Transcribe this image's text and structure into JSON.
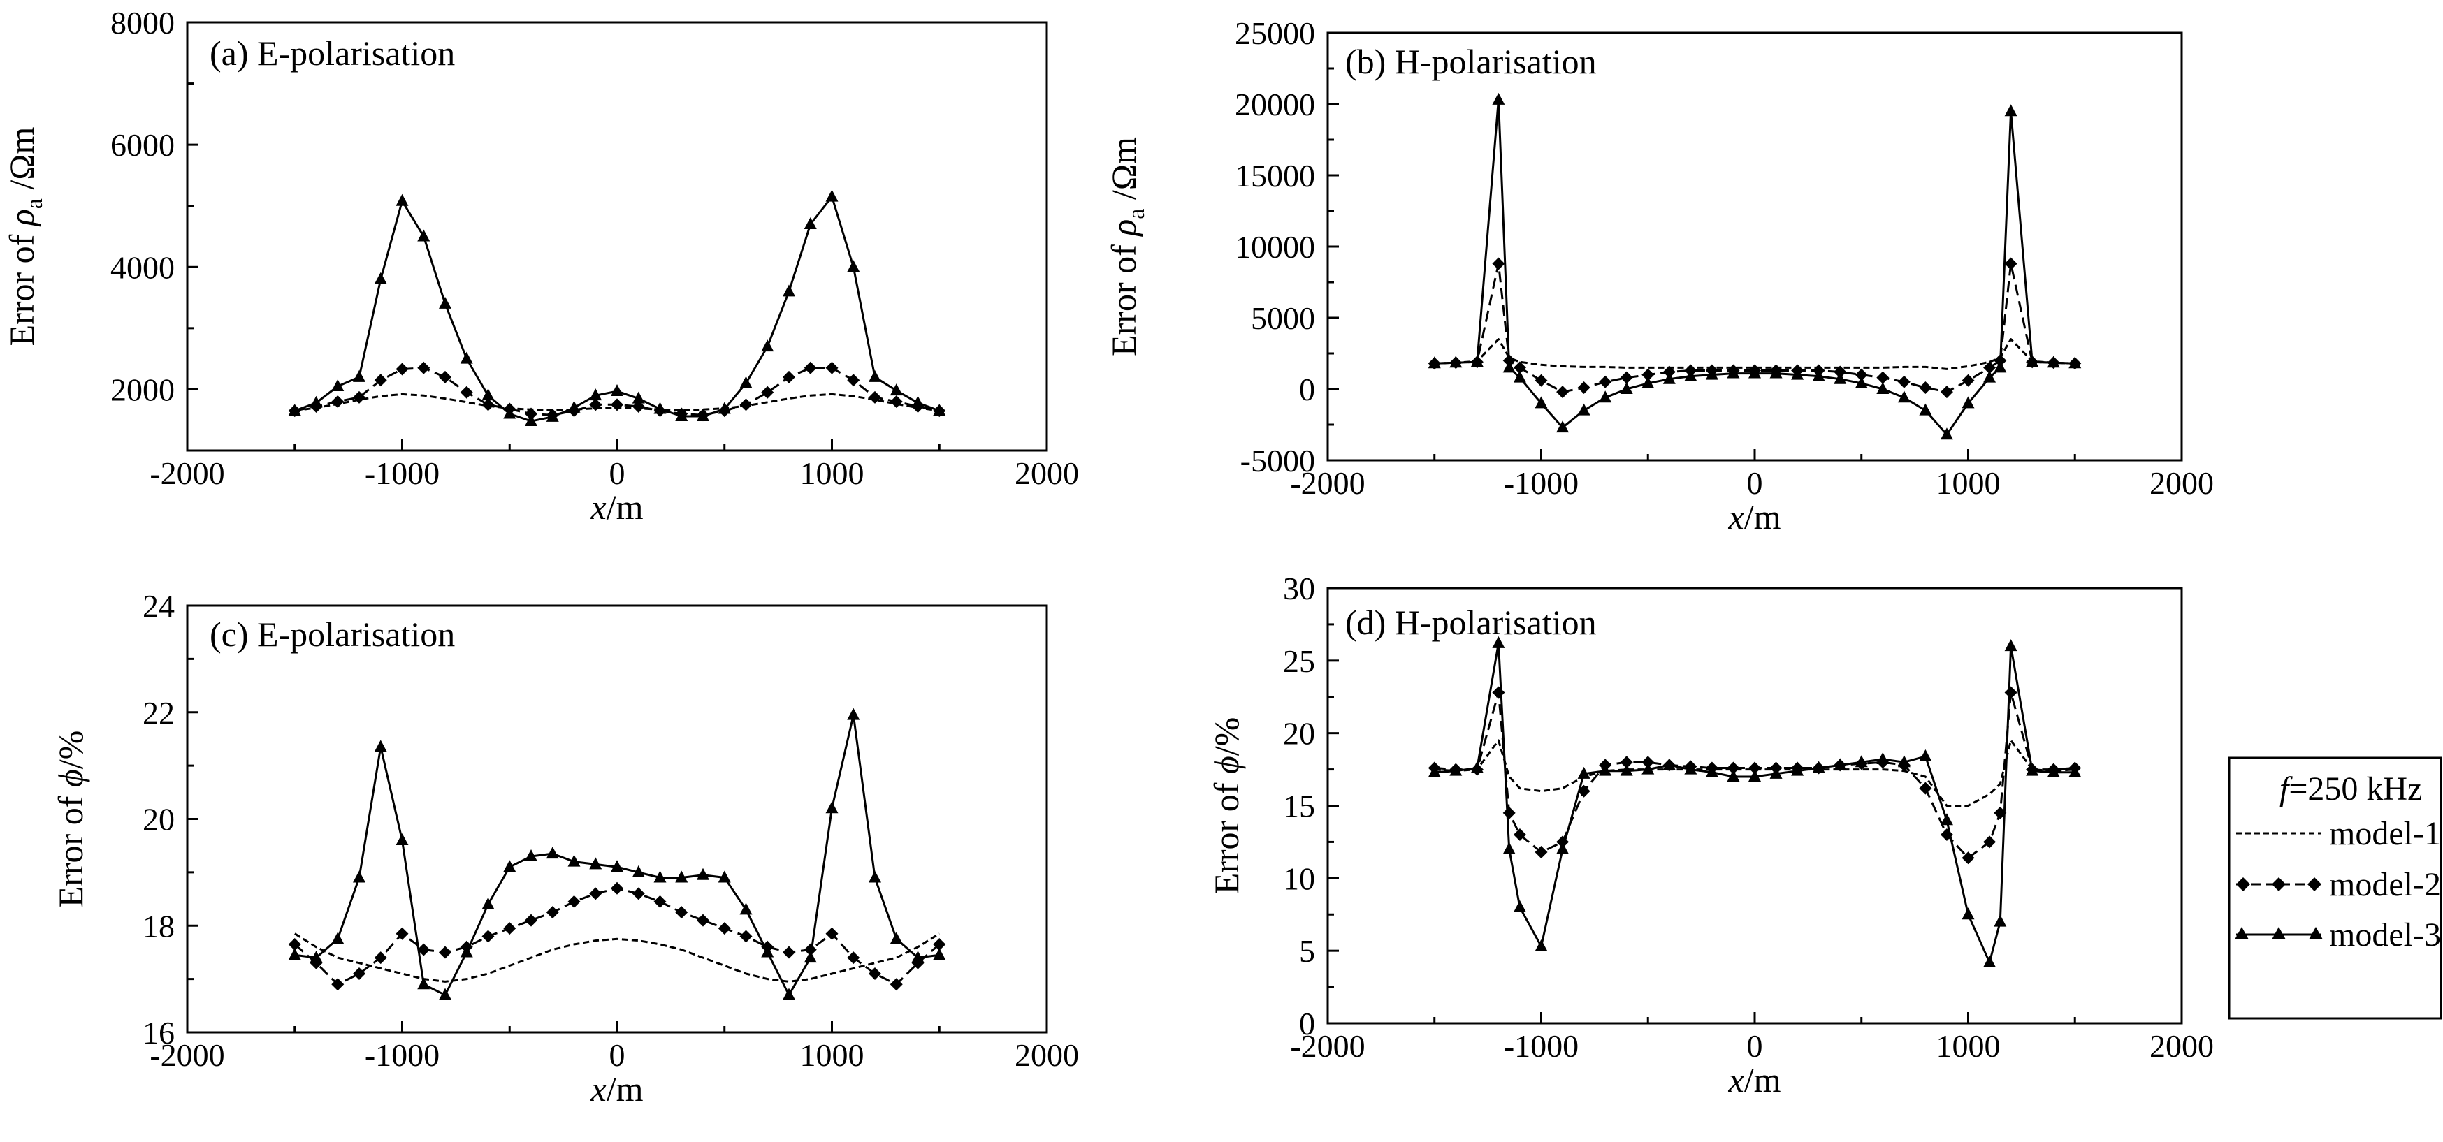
{
  "figure": {
    "legend": {
      "title_f": "f",
      "title_rest": "=250 kHz",
      "items": [
        {
          "label": "model-1",
          "style": "dashed-short",
          "marker": "none"
        },
        {
          "label": "model-2",
          "style": "dashed",
          "marker": "diamond"
        },
        {
          "label": "model-3",
          "style": "solid",
          "marker": "triangle"
        }
      ]
    }
  },
  "chart_data": [
    {
      "type": "line",
      "id": "a",
      "title": "(a) E-polarisation",
      "xlabel_italic": "x",
      "xlabel_rest": "/m",
      "ylabel_parts": {
        "pre": "Error of ",
        "sym": "ρ",
        "sub": "a",
        "post": " /Ωm"
      },
      "xlim": [
        -2000,
        2000
      ],
      "ylim": [
        1000,
        8000
      ],
      "xticks": [
        -2000,
        -1000,
        0,
        1000,
        2000
      ],
      "yticks": [
        2000,
        4000,
        6000,
        8000
      ],
      "series": [
        {
          "name": "model-1",
          "x": [
            -1500,
            -1400,
            -1300,
            -1200,
            -1100,
            -1000,
            -900,
            -800,
            -700,
            -600,
            -500,
            -400,
            -300,
            -200,
            -100,
            0,
            100,
            200,
            300,
            400,
            500,
            600,
            700,
            800,
            900,
            1000,
            1100,
            1200,
            1300,
            1400,
            1500
          ],
          "y": [
            1650,
            1700,
            1760,
            1830,
            1890,
            1920,
            1900,
            1850,
            1790,
            1730,
            1690,
            1670,
            1660,
            1670,
            1690,
            1700,
            1690,
            1670,
            1660,
            1670,
            1690,
            1730,
            1790,
            1850,
            1900,
            1920,
            1890,
            1830,
            1760,
            1700,
            1650
          ]
        },
        {
          "name": "model-2",
          "x": [
            -1500,
            -1400,
            -1300,
            -1200,
            -1100,
            -1000,
            -900,
            -800,
            -700,
            -600,
            -500,
            -400,
            -300,
            -200,
            -100,
            0,
            100,
            200,
            300,
            400,
            500,
            600,
            700,
            800,
            900,
            1000,
            1100,
            1200,
            1300,
            1400,
            1500
          ],
          "y": [
            1650,
            1720,
            1800,
            1870,
            2150,
            2330,
            2350,
            2200,
            1950,
            1750,
            1680,
            1600,
            1580,
            1650,
            1750,
            1750,
            1720,
            1650,
            1600,
            1580,
            1650,
            1750,
            1950,
            2200,
            2350,
            2350,
            2150,
            1870,
            1800,
            1720,
            1650
          ]
        },
        {
          "name": "model-3",
          "x": [
            -1500,
            -1400,
            -1300,
            -1200,
            -1100,
            -1000,
            -900,
            -800,
            -700,
            -600,
            -500,
            -400,
            -300,
            -200,
            -100,
            0,
            100,
            200,
            300,
            400,
            500,
            600,
            700,
            800,
            900,
            1000,
            1100,
            1200,
            1300,
            1400,
            1500
          ],
          "y": [
            1650,
            1780,
            2050,
            2200,
            3800,
            5080,
            4500,
            3400,
            2500,
            1900,
            1600,
            1480,
            1550,
            1700,
            1900,
            1970,
            1850,
            1680,
            1560,
            1560,
            1680,
            2100,
            2700,
            3600,
            4700,
            5150,
            4000,
            2200,
            1980,
            1780,
            1650
          ]
        }
      ]
    },
    {
      "type": "line",
      "id": "b",
      "title": "(b) H-polarisation",
      "xlabel_italic": "x",
      "xlabel_rest": "/m",
      "ylabel_parts": {
        "pre": "Error of ",
        "sym": "ρ",
        "sub": "a",
        "post": " /Ωm"
      },
      "xlim": [
        -2000,
        2000
      ],
      "ylim": [
        -5000,
        25000
      ],
      "xticks": [
        -2000,
        -1000,
        0,
        1000,
        2000
      ],
      "yticks": [
        -5000,
        0,
        5000,
        10000,
        15000,
        20000,
        25000
      ],
      "series": [
        {
          "name": "model-1",
          "x": [
            -1500,
            -1400,
            -1300,
            -1200,
            -1150,
            -1100,
            -1000,
            -900,
            -800,
            -700,
            -600,
            -500,
            -400,
            -300,
            -200,
            -100,
            0,
            100,
            200,
            300,
            400,
            500,
            600,
            700,
            800,
            900,
            1000,
            1100,
            1150,
            1200,
            1300,
            1400,
            1500
          ],
          "y": [
            1800,
            1850,
            1950,
            3500,
            2200,
            1900,
            1700,
            1600,
            1550,
            1550,
            1500,
            1500,
            1500,
            1500,
            1500,
            1500,
            1500,
            1500,
            1500,
            1500,
            1500,
            1500,
            1500,
            1550,
            1550,
            1400,
            1600,
            1900,
            2200,
            3500,
            1950,
            1850,
            1800
          ]
        },
        {
          "name": "model-2",
          "x": [
            -1500,
            -1400,
            -1300,
            -1200,
            -1150,
            -1100,
            -1000,
            -900,
            -800,
            -700,
            -600,
            -500,
            -400,
            -300,
            -200,
            -100,
            0,
            100,
            200,
            300,
            400,
            500,
            600,
            700,
            800,
            900,
            1000,
            1100,
            1150,
            1200,
            1300,
            1400,
            1500
          ],
          "y": [
            1800,
            1850,
            1900,
            8800,
            2000,
            1500,
            600,
            -200,
            100,
            500,
            800,
            1000,
            1200,
            1300,
            1300,
            1300,
            1300,
            1300,
            1300,
            1300,
            1200,
            1000,
            800,
            500,
            100,
            -200,
            600,
            1500,
            2000,
            8800,
            1900,
            1850,
            1800
          ]
        },
        {
          "name": "model-3",
          "x": [
            -1500,
            -1400,
            -1300,
            -1200,
            -1150,
            -1100,
            -1000,
            -900,
            -800,
            -700,
            -600,
            -500,
            -400,
            -300,
            -200,
            -100,
            0,
            100,
            200,
            300,
            400,
            500,
            600,
            700,
            800,
            900,
            1000,
            1100,
            1150,
            1200,
            1300,
            1400,
            1500
          ],
          "y": [
            1800,
            1850,
            1900,
            20300,
            1500,
            800,
            -1000,
            -2700,
            -1500,
            -600,
            0,
            400,
            700,
            900,
            1000,
            1100,
            1100,
            1100,
            1000,
            900,
            700,
            400,
            0,
            -600,
            -1500,
            -3200,
            -1000,
            800,
            1500,
            19500,
            1900,
            1850,
            1800
          ]
        }
      ]
    },
    {
      "type": "line",
      "id": "c",
      "title": "(c) E-polarisation",
      "xlabel_italic": "x",
      "xlabel_rest": "/m",
      "ylabel_parts": {
        "pre": "Error of ",
        "sym": "ϕ",
        "sub": "",
        "post": "/%"
      },
      "xlim": [
        -2000,
        2000
      ],
      "ylim": [
        16,
        24
      ],
      "xticks": [
        -2000,
        -1000,
        0,
        1000,
        2000
      ],
      "yticks": [
        16,
        18,
        20,
        22,
        24
      ],
      "series": [
        {
          "name": "model-1",
          "x": [
            -1500,
            -1400,
            -1300,
            -1200,
            -1100,
            -1000,
            -900,
            -800,
            -700,
            -600,
            -500,
            -400,
            -300,
            -200,
            -100,
            0,
            100,
            200,
            300,
            400,
            500,
            600,
            700,
            800,
            900,
            1000,
            1100,
            1200,
            1300,
            1400,
            1500
          ],
          "y": [
            17.85,
            17.6,
            17.4,
            17.3,
            17.2,
            17.1,
            17.0,
            16.95,
            17.0,
            17.1,
            17.25,
            17.4,
            17.55,
            17.65,
            17.72,
            17.75,
            17.72,
            17.65,
            17.55,
            17.4,
            17.25,
            17.1,
            17.0,
            16.95,
            17.0,
            17.1,
            17.2,
            17.3,
            17.4,
            17.6,
            17.85
          ]
        },
        {
          "name": "model-2",
          "x": [
            -1500,
            -1400,
            -1300,
            -1200,
            -1100,
            -1000,
            -900,
            -800,
            -700,
            -600,
            -500,
            -400,
            -300,
            -200,
            -100,
            0,
            100,
            200,
            300,
            400,
            500,
            600,
            700,
            800,
            900,
            1000,
            1100,
            1200,
            1300,
            1400,
            1500
          ],
          "y": [
            17.65,
            17.3,
            16.9,
            17.1,
            17.4,
            17.85,
            17.55,
            17.5,
            17.6,
            17.8,
            17.95,
            18.1,
            18.25,
            18.45,
            18.6,
            18.7,
            18.6,
            18.45,
            18.25,
            18.1,
            17.95,
            17.8,
            17.6,
            17.5,
            17.55,
            17.85,
            17.4,
            17.1,
            16.9,
            17.3,
            17.65
          ]
        },
        {
          "name": "model-3",
          "x": [
            -1500,
            -1400,
            -1300,
            -1200,
            -1100,
            -1000,
            -900,
            -800,
            -700,
            -600,
            -500,
            -400,
            -300,
            -200,
            -100,
            0,
            100,
            200,
            300,
            400,
            500,
            600,
            700,
            800,
            900,
            1000,
            1100,
            1200,
            1300,
            1400,
            1500
          ],
          "y": [
            17.45,
            17.4,
            17.75,
            18.9,
            21.35,
            19.6,
            16.9,
            16.7,
            17.5,
            18.4,
            19.1,
            19.3,
            19.35,
            19.2,
            19.15,
            19.1,
            19.0,
            18.9,
            18.9,
            18.95,
            18.9,
            18.3,
            17.5,
            16.7,
            17.4,
            20.2,
            21.95,
            18.9,
            17.75,
            17.4,
            17.45
          ]
        }
      ]
    },
    {
      "type": "line",
      "id": "d",
      "title": "(d) H-polarisation",
      "xlabel_italic": "x",
      "xlabel_rest": "/m",
      "ylabel_parts": {
        "pre": "Error of ",
        "sym": "ϕ",
        "sub": "",
        "post": "/%"
      },
      "xlim": [
        -2000,
        2000
      ],
      "ylim": [
        0,
        30
      ],
      "xticks": [
        -2000,
        -1000,
        0,
        1000,
        2000
      ],
      "yticks": [
        0,
        5,
        10,
        15,
        20,
        25,
        30
      ],
      "series": [
        {
          "name": "model-1",
          "x": [
            -1500,
            -1400,
            -1300,
            -1200,
            -1150,
            -1100,
            -1000,
            -900,
            -800,
            -700,
            -600,
            -500,
            -400,
            -300,
            -200,
            -100,
            0,
            100,
            200,
            300,
            400,
            500,
            600,
            700,
            800,
            900,
            1000,
            1100,
            1150,
            1200,
            1300,
            1400,
            1500
          ],
          "y": [
            17.5,
            17.4,
            17.5,
            19.5,
            17.0,
            16.2,
            16.0,
            16.2,
            17.0,
            17.4,
            17.5,
            17.5,
            17.5,
            17.5,
            17.5,
            17.5,
            17.5,
            17.5,
            17.5,
            17.5,
            17.5,
            17.5,
            17.5,
            17.4,
            17.0,
            15.0,
            15.0,
            15.8,
            16.5,
            19.5,
            17.5,
            17.4,
            17.5
          ]
        },
        {
          "name": "model-2",
          "x": [
            -1500,
            -1400,
            -1300,
            -1200,
            -1150,
            -1100,
            -1000,
            -900,
            -800,
            -700,
            -600,
            -500,
            -400,
            -300,
            -200,
            -100,
            0,
            100,
            200,
            300,
            400,
            500,
            600,
            700,
            800,
            900,
            1000,
            1100,
            1150,
            1200,
            1300,
            1400,
            1500
          ],
          "y": [
            17.6,
            17.5,
            17.5,
            22.8,
            14.5,
            13.0,
            11.8,
            12.5,
            16.0,
            17.8,
            18.0,
            18.0,
            17.8,
            17.7,
            17.6,
            17.6,
            17.6,
            17.6,
            17.6,
            17.6,
            17.8,
            17.9,
            18.0,
            17.8,
            16.2,
            13.0,
            11.4,
            12.5,
            14.5,
            22.8,
            17.5,
            17.5,
            17.6
          ]
        },
        {
          "name": "model-3",
          "x": [
            -1500,
            -1400,
            -1300,
            -1200,
            -1150,
            -1100,
            -1000,
            -900,
            -800,
            -700,
            -600,
            -500,
            -400,
            -300,
            -200,
            -100,
            0,
            100,
            200,
            300,
            400,
            500,
            600,
            700,
            800,
            900,
            1000,
            1100,
            1150,
            1200,
            1300,
            1400,
            1500
          ],
          "y": [
            17.3,
            17.4,
            17.6,
            26.2,
            12.0,
            8.0,
            5.3,
            12.0,
            17.2,
            17.4,
            17.4,
            17.5,
            17.8,
            17.5,
            17.3,
            17.0,
            17.0,
            17.2,
            17.4,
            17.6,
            17.8,
            18.0,
            18.2,
            18.0,
            18.4,
            14.0,
            7.5,
            4.2,
            7.0,
            26.0,
            17.4,
            17.3,
            17.3
          ]
        }
      ]
    }
  ]
}
